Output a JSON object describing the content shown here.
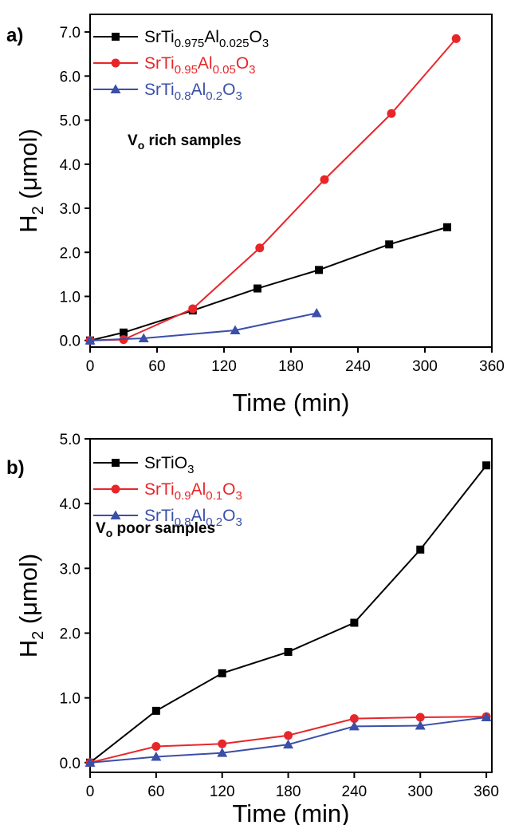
{
  "chart_data": [
    {
      "type": "line",
      "panel_label": "a)",
      "annotation": {
        "main": "V",
        "sub": "o",
        "rest": " rich samples"
      },
      "xlabel": "Time (min)",
      "ylabel": {
        "main": "H",
        "sub": "2",
        "rest": " (μmol)"
      },
      "xlim": [
        0,
        360
      ],
      "ylim": [
        -0.15,
        7.4
      ],
      "xticks": [
        0,
        60,
        120,
        180,
        240,
        300,
        360
      ],
      "yticks": [
        0,
        1,
        2,
        3,
        4,
        5,
        6,
        7
      ],
      "ytick_labels": [
        "0.0",
        "1.0",
        "2.0",
        "3.0",
        "4.0",
        "5.0",
        "6.0",
        "7.0"
      ],
      "legend_position": "top-left",
      "series": [
        {
          "name": "SrTi0.975Al0.025O3",
          "name_parts": [
            {
              "t": "SrTi"
            },
            {
              "t": "0.975",
              "sub": true
            },
            {
              "t": "Al"
            },
            {
              "t": "0.025",
              "sub": true
            },
            {
              "t": "O"
            },
            {
              "t": "3",
              "sub": true
            }
          ],
          "color": "#000000",
          "marker": "square",
          "x": [
            0,
            30,
            92,
            150,
            205,
            268,
            320
          ],
          "y": [
            0.0,
            0.18,
            0.68,
            1.18,
            1.6,
            2.18,
            2.57
          ]
        },
        {
          "name": "SrTi0.95Al0.05O3",
          "name_parts": [
            {
              "t": "SrTi"
            },
            {
              "t": "0.95",
              "sub": true
            },
            {
              "t": "Al"
            },
            {
              "t": "0.05",
              "sub": true
            },
            {
              "t": "O"
            },
            {
              "t": "3",
              "sub": true
            }
          ],
          "color": "#e8262a",
          "marker": "circle",
          "x": [
            0,
            30,
            92,
            152,
            210,
            270,
            328
          ],
          "y": [
            0.0,
            0.02,
            0.72,
            2.1,
            3.65,
            5.15,
            6.85
          ]
        },
        {
          "name": "SrTi0.8Al0.2O3",
          "name_parts": [
            {
              "t": "SrTi"
            },
            {
              "t": "0.8",
              "sub": true
            },
            {
              "t": "Al"
            },
            {
              "t": "0.2",
              "sub": true
            },
            {
              "t": "O"
            },
            {
              "t": "3",
              "sub": true
            }
          ],
          "color": "#3a4fa8",
          "marker": "triangle",
          "x": [
            0,
            48,
            130,
            203
          ],
          "y": [
            0.0,
            0.05,
            0.23,
            0.62
          ]
        }
      ]
    },
    {
      "type": "line",
      "panel_label": "b)",
      "annotation": {
        "main": "V",
        "sub": "o",
        "rest": " poor samples"
      },
      "xlabel": "Time (min)",
      "ylabel": {
        "main": "H",
        "sub": "2",
        "rest": " (μmol)"
      },
      "xlim": [
        0,
        365
      ],
      "ylim": [
        -0.15,
        5.0
      ],
      "xticks": [
        0,
        60,
        120,
        180,
        240,
        300,
        360
      ],
      "yticks": [
        0,
        1,
        2,
        3,
        4,
        5
      ],
      "ytick_labels": [
        "0.0",
        "1.0",
        "2.0",
        "3.0",
        "4.0",
        "5.0"
      ],
      "legend_position": "top-left",
      "series": [
        {
          "name": "SrTiO3",
          "name_parts": [
            {
              "t": "SrTiO"
            },
            {
              "t": "3",
              "sub": true
            }
          ],
          "color": "#000000",
          "marker": "square",
          "x": [
            0,
            60,
            120,
            180,
            240,
            300,
            360
          ],
          "y": [
            0.0,
            0.8,
            1.38,
            1.71,
            2.16,
            3.29,
            4.59
          ]
        },
        {
          "name": "SrTi0.9Al0.1O3",
          "name_parts": [
            {
              "t": "SrTi"
            },
            {
              "t": "0.9",
              "sub": true
            },
            {
              "t": "Al"
            },
            {
              "t": "0.1",
              "sub": true
            },
            {
              "t": "O"
            },
            {
              "t": "3",
              "sub": true
            }
          ],
          "color": "#e8262a",
          "marker": "circle",
          "x": [
            0,
            60,
            120,
            180,
            240,
            300,
            360
          ],
          "y": [
            0.0,
            0.25,
            0.29,
            0.42,
            0.68,
            0.7,
            0.71
          ]
        },
        {
          "name": "SrTi0.8Al0.2O3",
          "name_parts": [
            {
              "t": "SrTi"
            },
            {
              "t": "0.8",
              "sub": true
            },
            {
              "t": "Al"
            },
            {
              "t": "0.2",
              "sub": true
            },
            {
              "t": "O"
            },
            {
              "t": "3",
              "sub": true
            }
          ],
          "color": "#3a4fa8",
          "marker": "triangle",
          "x": [
            0,
            60,
            120,
            180,
            240,
            300,
            360
          ],
          "y": [
            0.0,
            0.09,
            0.15,
            0.28,
            0.56,
            0.57,
            0.7
          ]
        }
      ]
    }
  ]
}
